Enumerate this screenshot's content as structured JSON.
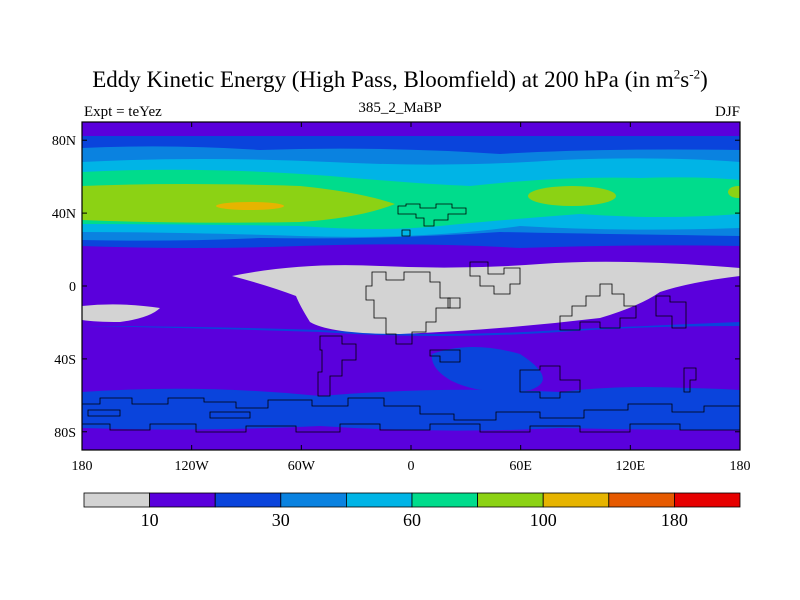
{
  "title": {
    "main": "Eddy Kinetic Energy (High Pass, Bloomfield) at 200 hPa (in m",
    "sup1": "2",
    "mid": "s",
    "sup2": "-2",
    "end": ")"
  },
  "subtitle_left": "Expt = teYez",
  "subtitle_center": "385_2_MaBP",
  "subtitle_right": "DJF",
  "map": {
    "lon_range": [
      -180,
      180
    ],
    "lat_range": [
      -90,
      90
    ],
    "lat_ticks": [
      {
        "value": 80,
        "label": "80N"
      },
      {
        "value": 40,
        "label": "40N"
      },
      {
        "value": 0,
        "label": "0"
      },
      {
        "value": -40,
        "label": "40S"
      },
      {
        "value": -80,
        "label": "80S"
      }
    ],
    "lon_ticks": [
      {
        "value": -180,
        "label": "180"
      },
      {
        "value": -120,
        "label": "120W"
      },
      {
        "value": -60,
        "label": "60W"
      },
      {
        "value": 0,
        "label": "0"
      },
      {
        "value": 60,
        "label": "60E"
      },
      {
        "value": 120,
        "label": "120E"
      },
      {
        "value": 180,
        "label": "180"
      }
    ]
  },
  "colorbar": {
    "colors": [
      "#d3d3d3",
      "#5a00dc",
      "#0a44dc",
      "#0a82e0",
      "#00b4e6",
      "#00dc8c",
      "#8cd214",
      "#e6b400",
      "#e65a00",
      "#e60000"
    ],
    "labels": [
      {
        "after_box": 1,
        "text": "10"
      },
      {
        "after_box": 3,
        "text": "30"
      },
      {
        "after_box": 5,
        "text": "60"
      },
      {
        "after_box": 7,
        "text": "100"
      },
      {
        "after_box": 9,
        "text": "180"
      }
    ]
  }
}
